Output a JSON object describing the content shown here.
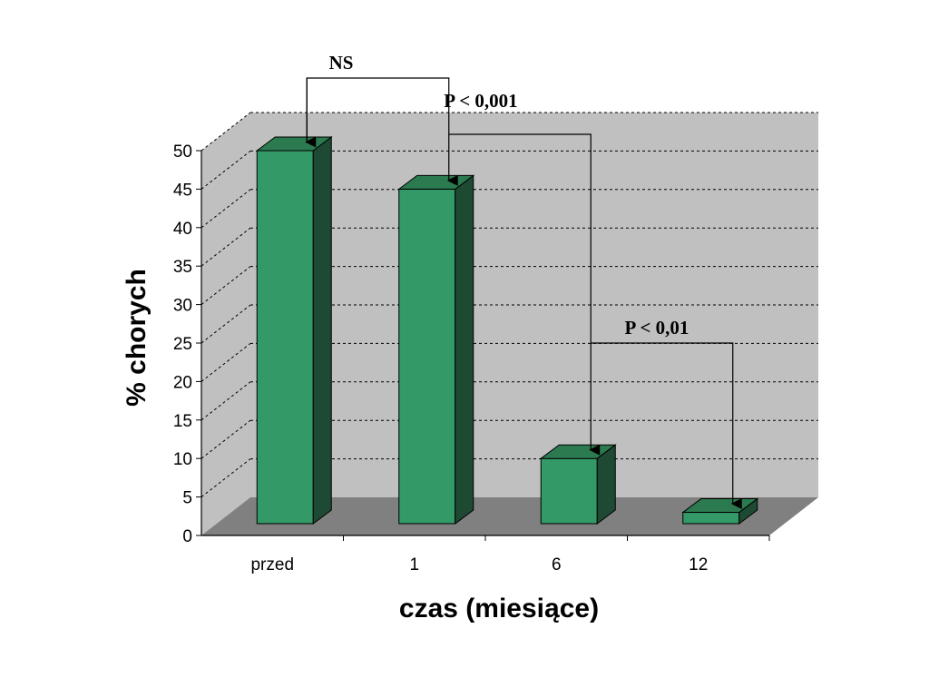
{
  "chart_data": {
    "type": "bar",
    "categories": [
      "przed",
      "1",
      "6",
      "12"
    ],
    "values": [
      50,
      45,
      10,
      3
    ],
    "xlabel": "czas (miesiące)",
    "ylabel": "% chorych",
    "ylim": [
      0,
      50
    ],
    "yticks": [
      0,
      5,
      10,
      15,
      20,
      25,
      30,
      35,
      40,
      45,
      50
    ],
    "grid": true,
    "three_d": true,
    "annotations": [
      {
        "text": "NS",
        "from": "przed",
        "to": "1"
      },
      {
        "text": "P < 0,001",
        "from": "1",
        "to": "6"
      },
      {
        "text": "P < 0,01",
        "from": "6",
        "to": "12"
      }
    ],
    "colors": {
      "bar_front": "#339966",
      "bar_side": "#1e4a34",
      "bar_top": "#2c7a50",
      "wall": "#c0c0c0",
      "floor": "#808080",
      "grid": "#000000"
    }
  }
}
